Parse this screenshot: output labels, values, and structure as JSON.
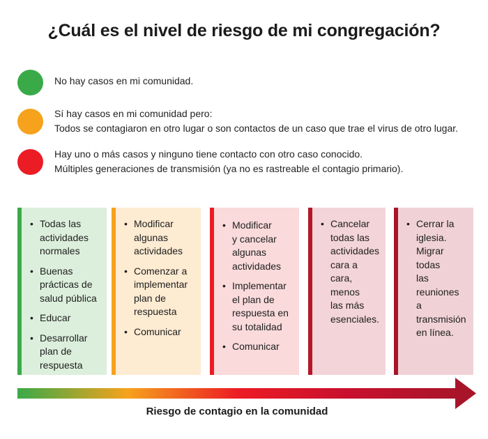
{
  "title": "¿Cuál es el nivel de riesgo de mi congregación?",
  "legend": [
    {
      "color": "#3aaa49",
      "lines": [
        "No hay casos en mi comunidad."
      ]
    },
    {
      "color": "#f6a21d",
      "lines": [
        "Sí hay casos en mi comunidad pero:",
        "Todos se contagiaron en otro lugar o son contactos de un caso que trae el virus de otro lugar."
      ]
    },
    {
      "color": "#ec1c24",
      "lines": [
        "Hay uno o más casos y ninguno tiene contacto con otro caso conocido.",
        "Múltiples generaciones de transmisión (ya no es rastreable el contagio primario)."
      ]
    }
  ],
  "columns": [
    {
      "bg": "#dcefdc",
      "border": "#3aaa49",
      "items": [
        "Todas las\nactividades\nnormales",
        "Buenas\nprácticas de\nsalud pública",
        "Educar",
        "Desarrollar\nplan de\nrespuesta"
      ]
    },
    {
      "bg": "#fdebd2",
      "border": "#f6a21d",
      "items": [
        "Modificar\nalgunas\nactividades",
        "Comenzar a\nimplementar\nplan de\nrespuesta",
        "Comunicar"
      ]
    },
    {
      "bg": "#fadadb",
      "border": "#ec1c24",
      "items": [
        "Modificar\ny cancelar\nalgunas\nactividades",
        "Implementar\nel plan de\nrespuesta en\nsu totalidad",
        "Comunicar"
      ]
    },
    {
      "bg": "#f3d4d8",
      "border": "#b5172a",
      "items": [
        "Cancelar\ntodas las\nactividades\ncara a cara,\nmenos\nlas más\nesenciales."
      ]
    },
    {
      "bg": "#f0d2d6",
      "border": "#a8152a",
      "items": [
        "Cerrar la\niglesia.\nMigrar todas\nlas reuniones\na transmisión\nen línea."
      ]
    }
  ],
  "arrow": {
    "label": "Riesgo de contagio en la comunidad",
    "gradient": [
      "#3aaa49",
      "#f6a21d",
      "#ec1c24",
      "#c8102e",
      "#a8152a"
    ]
  },
  "bullet": "•"
}
